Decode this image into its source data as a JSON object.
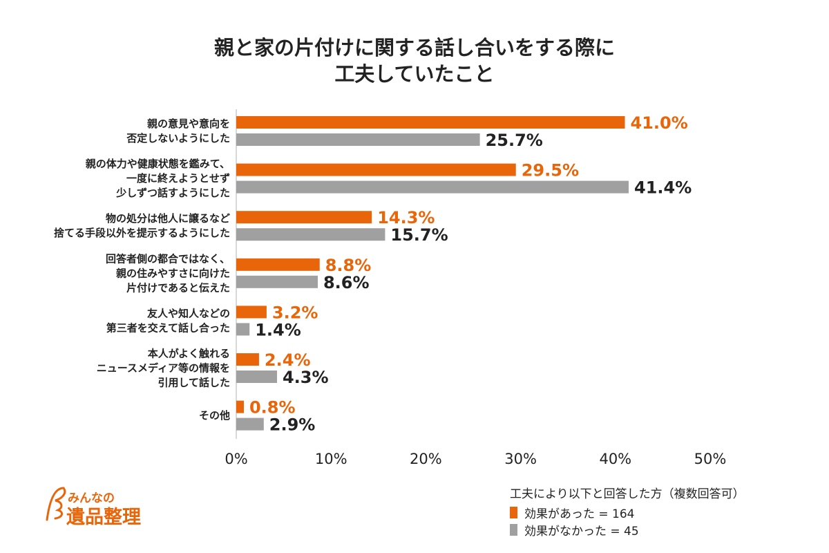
{
  "title": [
    "親と家の片付けに関する話し合いをする際に",
    "工夫していたこと"
  ],
  "logo": {
    "line1": "みんなの",
    "line2": "遺品整理"
  },
  "legend": {
    "heading": "工夫により以下と回答した方（複数回答可）",
    "items": [
      "効果があった = 164",
      "効果がなかった = 45"
    ]
  },
  "chart_data": {
    "type": "bar",
    "orientation": "horizontal",
    "categories": [
      [
        "親の意見や意向を",
        "否定しないようにした"
      ],
      [
        "親の体力や健康状態を鑑みて、",
        "一度に終えようとせず",
        "少しずつ話すようにした"
      ],
      [
        "物の処分は他人に譲るなど",
        "捨てる手段以外を提示するようにした"
      ],
      [
        "回答者側の都合ではなく、",
        "親の住みやすさに向けた",
        "片付けであると伝えた"
      ],
      [
        "友人や知人などの",
        "第三者を交えて話し合った"
      ],
      [
        "本人がよく触れる",
        "ニュースメディア等の情報を",
        "引用して話した"
      ],
      [
        "その他"
      ]
    ],
    "series": [
      {
        "name": "効果があった = 164",
        "color": "#e8650a",
        "values": [
          41.0,
          29.5,
          14.3,
          8.8,
          3.2,
          2.4,
          0.8
        ]
      },
      {
        "name": "効果がなかった = 45",
        "color": "#a0a0a0",
        "values": [
          25.7,
          41.4,
          15.7,
          8.6,
          1.4,
          4.3,
          2.9
        ]
      }
    ],
    "value_label_colors": [
      "#e8650a",
      "#222222"
    ],
    "xlim": [
      0,
      50
    ],
    "xticks": [
      "0%",
      "10%",
      "20%",
      "30%",
      "40%",
      "50%"
    ],
    "xtick_values": [
      0,
      10,
      20,
      30,
      40,
      50
    ],
    "grid": false
  }
}
